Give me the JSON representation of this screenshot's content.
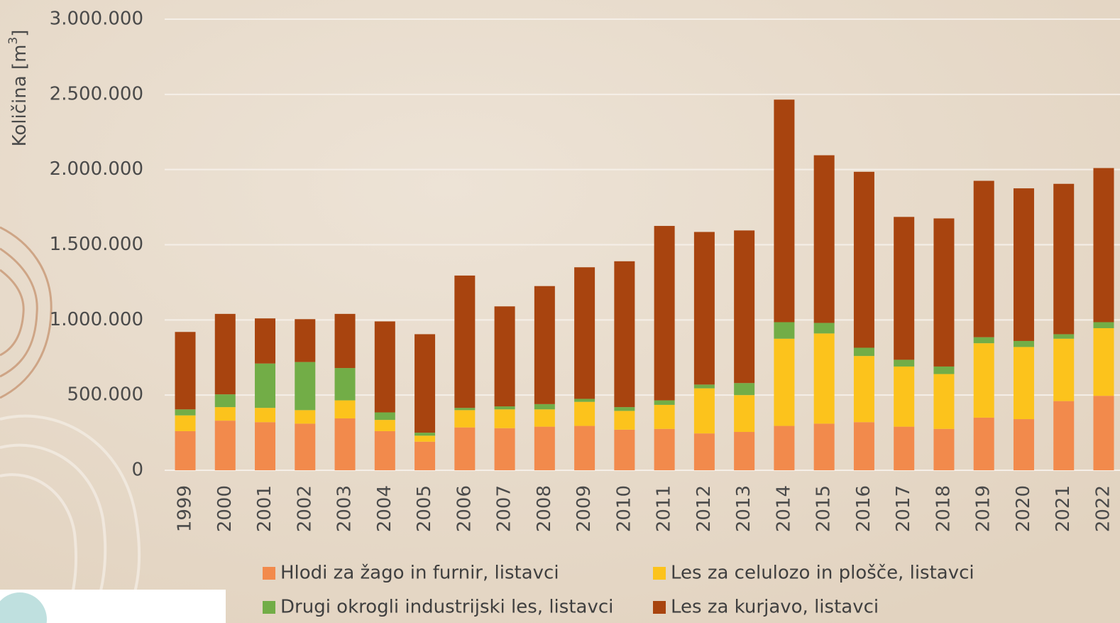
{
  "chart_data": {
    "type": "stacked-bar",
    "y_label": "Količina [m",
    "y_label_sup": "3",
    "y_label_end": "]",
    "categories": [
      "1999",
      "2000",
      "2001",
      "2002",
      "2003",
      "2004",
      "2005",
      "2006",
      "2007",
      "2008",
      "2009",
      "2010",
      "2011",
      "2012",
      "2013",
      "2014",
      "2015",
      "2016",
      "2017",
      "2018",
      "2019",
      "2020",
      "2021",
      "2022"
    ],
    "series": [
      {
        "name": "Hlodi za žago in furnir, listavci",
        "color": "#f28a4c",
        "values": [
          260000,
          330000,
          320000,
          310000,
          345000,
          260000,
          190000,
          285000,
          280000,
          290000,
          295000,
          270000,
          275000,
          245000,
          255000,
          295000,
          310000,
          320000,
          290000,
          275000,
          350000,
          340000,
          460000,
          495000
        ]
      },
      {
        "name": "Les za celulozo in plošče, listavci",
        "color": "#fcc31c",
        "values": [
          105000,
          90000,
          95000,
          90000,
          120000,
          75000,
          40000,
          115000,
          125000,
          115000,
          160000,
          125000,
          160000,
          300000,
          245000,
          580000,
          600000,
          440000,
          400000,
          365000,
          495000,
          480000,
          415000,
          450000
        ]
      },
      {
        "name": "Drugi okrogli industrijski les, listavci",
        "color": "#72ad47",
        "values": [
          40000,
          85000,
          295000,
          320000,
          215000,
          50000,
          20000,
          15000,
          20000,
          35000,
          20000,
          25000,
          30000,
          25000,
          80000,
          110000,
          70000,
          55000,
          45000,
          50000,
          40000,
          40000,
          30000,
          40000
        ]
      },
      {
        "name": "Les za kurjavo, listavci",
        "color": "#a8440f",
        "values": [
          515000,
          535000,
          300000,
          285000,
          360000,
          605000,
          655000,
          880000,
          665000,
          785000,
          875000,
          970000,
          1160000,
          1015000,
          1015000,
          1480000,
          1115000,
          1170000,
          950000,
          985000,
          1040000,
          1015000,
          1000000,
          1025000
        ]
      }
    ],
    "ylim": [
      0,
      3000000
    ],
    "yticks": [
      0,
      {
        "value": 500000,
        "label": "500.000"
      },
      {
        "value": 1000000,
        "label": "1.000.000"
      },
      {
        "value": 1500000,
        "label": "1.500.000"
      },
      {
        "value": 2000000,
        "label": "2.000.000"
      },
      {
        "value": 2500000,
        "label": "2.500.000"
      },
      {
        "value": 3000000,
        "label": "3.000.000"
      }
    ],
    "grid": true,
    "legend": "bottom"
  }
}
